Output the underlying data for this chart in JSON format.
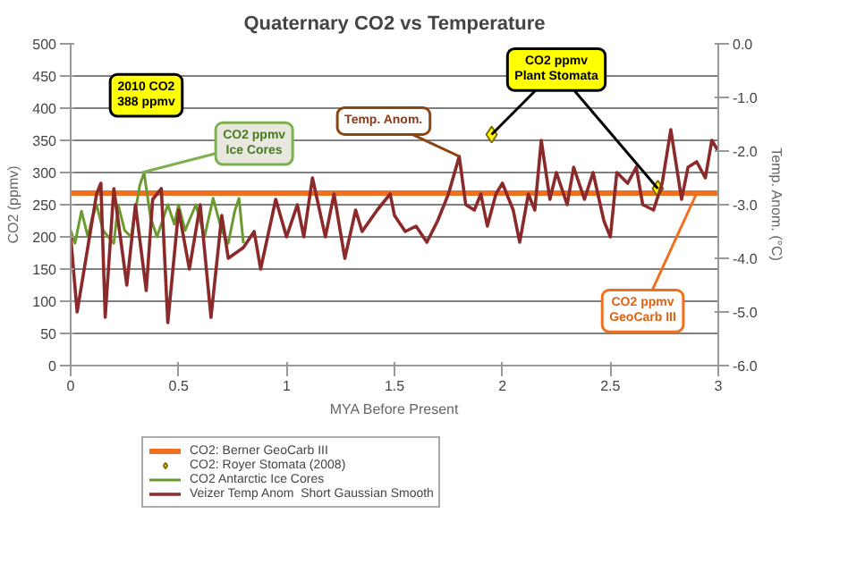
{
  "chart_data": {
    "type": "line",
    "title": "Quaternary CO2 vs Temperature",
    "xlabel": "MYA Before Present",
    "ylabel": "CO2 (ppmv)",
    "y2label": "Temp. Anom. (°C)",
    "xlim": [
      0,
      3
    ],
    "xticks": [
      0,
      0.5,
      1,
      1.5,
      2,
      2.5,
      3
    ],
    "ylim": [
      0,
      500
    ],
    "yticks": [
      0,
      50,
      100,
      150,
      200,
      250,
      300,
      350,
      400,
      450,
      500
    ],
    "y2lim": [
      -6,
      0
    ],
    "y2ticks": [
      {
        "value": 0,
        "label": "0.0"
      },
      {
        "value": -1,
        "label": "-1.0"
      },
      {
        "value": -2,
        "label": "-2.0"
      },
      {
        "value": -3,
        "label": "-3.0"
      },
      {
        "value": -4,
        "label": "-4.0"
      },
      {
        "value": -5,
        "label": "-5.0"
      },
      {
        "value": -6,
        "label": "-6.0"
      }
    ],
    "grid": "y",
    "legend": "bottom",
    "series": [
      {
        "name": "CO2: Berner GeoCarb III",
        "color": "#f07020",
        "x": [
          0,
          3
        ],
        "values": [
          268,
          268
        ]
      },
      {
        "name": "CO2: Royer Stomata (2008)",
        "type": "scatter",
        "marker": "diamond",
        "color": "#ffff00",
        "x": [
          1.95,
          2.72
        ],
        "values": [
          359,
          275
        ]
      },
      {
        "name": "CO2 Antarctic Ice Cores",
        "color": "#6a9a30",
        "x": [
          0,
          0.02,
          0.05,
          0.08,
          0.1,
          0.12,
          0.15,
          0.2,
          0.22,
          0.25,
          0.28,
          0.32,
          0.34,
          0.37,
          0.4,
          0.45,
          0.48,
          0.5,
          0.53,
          0.58,
          0.62,
          0.66,
          0.7,
          0.73,
          0.76,
          0.78,
          0.8
        ],
        "values": [
          210,
          190,
          240,
          200,
          230,
          250,
          210,
          190,
          250,
          210,
          200,
          280,
          300,
          230,
          200,
          250,
          220,
          250,
          210,
          250,
          200,
          260,
          210,
          190,
          240,
          260,
          190
        ]
      },
      {
        "name": "Veizer Temp Anom  Short Gaussian Smooth",
        "axis": "y2",
        "color": "#8b2a2a",
        "x": [
          0,
          0.03,
          0.12,
          0.14,
          0.16,
          0.2,
          0.26,
          0.3,
          0.35,
          0.38,
          0.42,
          0.45,
          0.5,
          0.55,
          0.6,
          0.65,
          0.7,
          0.73,
          0.8,
          0.85,
          0.88,
          0.95,
          1.0,
          1.05,
          1.08,
          1.12,
          1.18,
          1.22,
          1.27,
          1.32,
          1.35,
          1.42,
          1.48,
          1.5,
          1.55,
          1.6,
          1.65,
          1.7,
          1.75,
          1.8,
          1.83,
          1.87,
          1.9,
          1.93,
          1.97,
          2.0,
          2.05,
          2.08,
          2.12,
          2.15,
          2.18,
          2.22,
          2.25,
          2.3,
          2.33,
          2.38,
          2.42,
          2.47,
          2.5,
          2.53,
          2.58,
          2.62,
          2.65,
          2.7,
          2.74,
          2.78,
          2.83,
          2.86,
          2.9,
          2.94,
          2.97,
          3.0
        ],
        "values": [
          -3.6,
          -5.0,
          -2.8,
          -2.6,
          -5.1,
          -2.7,
          -4.5,
          -3.0,
          -4.6,
          -2.9,
          -2.7,
          -5.2,
          -3.1,
          -4.2,
          -3.0,
          -5.1,
          -3.2,
          -4.0,
          -3.8,
          -3.5,
          -4.2,
          -2.9,
          -3.6,
          -3.0,
          -3.6,
          -2.5,
          -3.6,
          -2.8,
          -4.0,
          -3.1,
          -3.5,
          -3.1,
          -2.8,
          -3.2,
          -3.5,
          -3.4,
          -3.7,
          -3.3,
          -2.8,
          -2.1,
          -3.0,
          -3.1,
          -2.8,
          -3.4,
          -2.8,
          -2.6,
          -3.1,
          -3.7,
          -2.8,
          -3.1,
          -1.8,
          -2.9,
          -2.4,
          -3.0,
          -2.3,
          -2.9,
          -2.4,
          -3.3,
          -3.6,
          -2.4,
          -2.6,
          -2.3,
          -3.0,
          -3.1,
          -2.6,
          -1.6,
          -2.9,
          -2.3,
          -2.2,
          -2.5,
          -1.8,
          -2.0
        ]
      }
    ],
    "annotations": [
      "2010 CO2\n388 ppmv",
      {
        "text": "CO2 ppmv\nIce Cores",
        "x": 0.33,
        "y": 300
      },
      {
        "text": "Temp. Anom.",
        "x": 1.8,
        "y": 325
      },
      {
        "text": "CO2 ppmv\nPlant Stomata",
        "x": 1.95,
        "y": 359
      },
      {
        "text": "CO2 ppmv\nGeoCarb III",
        "x": 2.9,
        "y": 268
      }
    ]
  }
}
